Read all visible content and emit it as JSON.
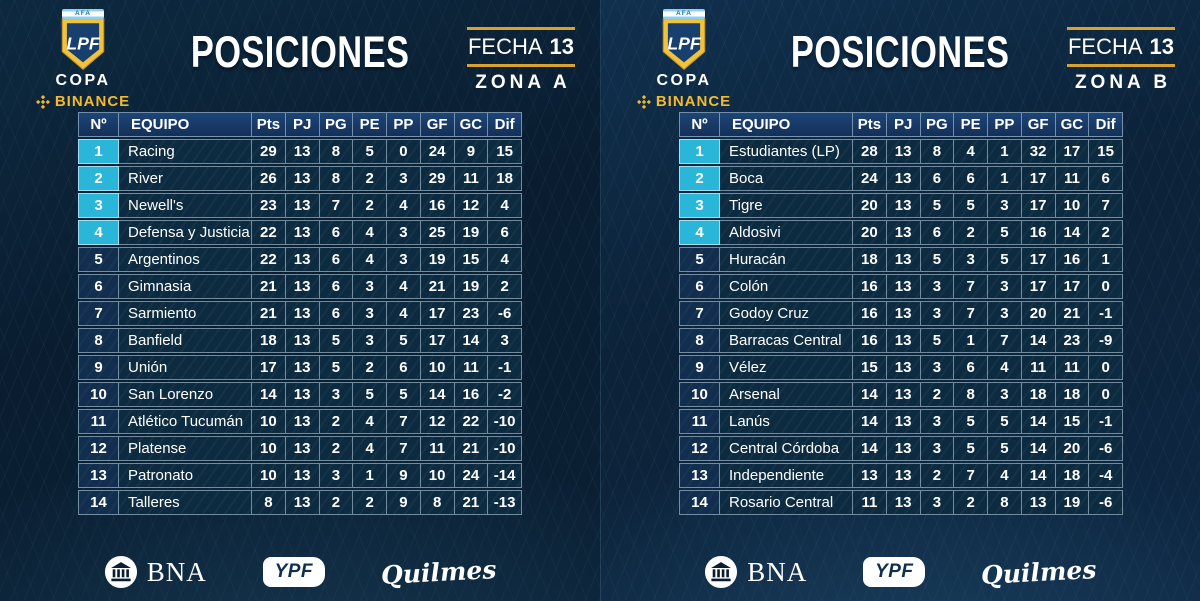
{
  "title": "POSICIONES",
  "fecha": {
    "label": "FECHA",
    "number": "13"
  },
  "branding": {
    "afa": "AFA",
    "lpf": "LPF",
    "copa": "COPA",
    "binance": "BINANCE"
  },
  "columns": [
    "Nº",
    "EQUIPO",
    "Pts",
    "PJ",
    "PG",
    "PE",
    "PP",
    "GF",
    "GC",
    "Dif"
  ],
  "zones": [
    {
      "name": "ZONA A",
      "rows": [
        [
          "1",
          "Racing",
          "29",
          "13",
          "8",
          "5",
          "0",
          "24",
          "9",
          "15"
        ],
        [
          "2",
          "River",
          "26",
          "13",
          "8",
          "2",
          "3",
          "29",
          "11",
          "18"
        ],
        [
          "3",
          "Newell's",
          "23",
          "13",
          "7",
          "2",
          "4",
          "16",
          "12",
          "4"
        ],
        [
          "4",
          "Defensa y Justicia",
          "22",
          "13",
          "6",
          "4",
          "3",
          "25",
          "19",
          "6"
        ],
        [
          "5",
          "Argentinos",
          "22",
          "13",
          "6",
          "4",
          "3",
          "19",
          "15",
          "4"
        ],
        [
          "6",
          "Gimnasia",
          "21",
          "13",
          "6",
          "3",
          "4",
          "21",
          "19",
          "2"
        ],
        [
          "7",
          "Sarmiento",
          "21",
          "13",
          "6",
          "3",
          "4",
          "17",
          "23",
          "-6"
        ],
        [
          "8",
          "Banfield",
          "18",
          "13",
          "5",
          "3",
          "5",
          "17",
          "14",
          "3"
        ],
        [
          "9",
          "Unión",
          "17",
          "13",
          "5",
          "2",
          "6",
          "10",
          "11",
          "-1"
        ],
        [
          "10",
          "San Lorenzo",
          "14",
          "13",
          "3",
          "5",
          "5",
          "14",
          "16",
          "-2"
        ],
        [
          "11",
          "Atlético Tucumán",
          "10",
          "13",
          "2",
          "4",
          "7",
          "12",
          "22",
          "-10"
        ],
        [
          "12",
          "Platense",
          "10",
          "13",
          "2",
          "4",
          "7",
          "11",
          "21",
          "-10"
        ],
        [
          "13",
          "Patronato",
          "10",
          "13",
          "3",
          "1",
          "9",
          "10",
          "24",
          "-14"
        ],
        [
          "14",
          "Talleres",
          "8",
          "13",
          "2",
          "2",
          "9",
          "8",
          "21",
          "-13"
        ]
      ]
    },
    {
      "name": "ZONA B",
      "rows": [
        [
          "1",
          "Estudiantes (LP)",
          "28",
          "13",
          "8",
          "4",
          "1",
          "32",
          "17",
          "15"
        ],
        [
          "2",
          "Boca",
          "24",
          "13",
          "6",
          "6",
          "1",
          "17",
          "11",
          "6"
        ],
        [
          "3",
          "Tigre",
          "20",
          "13",
          "5",
          "5",
          "3",
          "17",
          "10",
          "7"
        ],
        [
          "4",
          "Aldosivi",
          "20",
          "13",
          "6",
          "2",
          "5",
          "16",
          "14",
          "2"
        ],
        [
          "5",
          "Huracán",
          "18",
          "13",
          "5",
          "3",
          "5",
          "17",
          "16",
          "1"
        ],
        [
          "6",
          "Colón",
          "16",
          "13",
          "3",
          "7",
          "3",
          "17",
          "17",
          "0"
        ],
        [
          "7",
          "Godoy Cruz",
          "16",
          "13",
          "3",
          "7",
          "3",
          "20",
          "21",
          "-1"
        ],
        [
          "8",
          "Barracas Central",
          "16",
          "13",
          "5",
          "1",
          "7",
          "14",
          "23",
          "-9"
        ],
        [
          "9",
          "Vélez",
          "15",
          "13",
          "3",
          "6",
          "4",
          "11",
          "11",
          "0"
        ],
        [
          "10",
          "Arsenal",
          "14",
          "13",
          "2",
          "8",
          "3",
          "18",
          "18",
          "0"
        ],
        [
          "11",
          "Lanús",
          "14",
          "13",
          "3",
          "5",
          "5",
          "14",
          "15",
          "-1"
        ],
        [
          "12",
          "Central Córdoba",
          "14",
          "13",
          "3",
          "5",
          "5",
          "14",
          "20",
          "-6"
        ],
        [
          "13",
          "Independiente",
          "13",
          "13",
          "2",
          "7",
          "4",
          "14",
          "18",
          "-4"
        ],
        [
          "14",
          "Rosario Central",
          "11",
          "13",
          "3",
          "2",
          "8",
          "13",
          "19",
          "-6"
        ]
      ]
    }
  ],
  "sponsors": {
    "bna": "BNA",
    "ypf": "YPF",
    "quilmes": "Quilmes"
  },
  "colors": {
    "accent_cyan": "#2ab6d8",
    "gold_line": "#d9a22f",
    "binance_yellow": "#f3ba2f",
    "header_blue": "#1d4577",
    "cell_navy": "#0d2b40",
    "background": "#0a1d30"
  },
  "chart_data": [
    {
      "type": "table",
      "title": "POSICIONES - FECHA 13 - ZONA A",
      "columns": [
        "Nº",
        "EQUIPO",
        "Pts",
        "PJ",
        "PG",
        "PE",
        "PP",
        "GF",
        "GC",
        "Dif"
      ],
      "rows": [
        [
          1,
          "Racing",
          29,
          13,
          8,
          5,
          0,
          24,
          9,
          15
        ],
        [
          2,
          "River",
          26,
          13,
          8,
          2,
          3,
          29,
          11,
          18
        ],
        [
          3,
          "Newell's",
          23,
          13,
          7,
          2,
          4,
          16,
          12,
          4
        ],
        [
          4,
          "Defensa y Justicia",
          22,
          13,
          6,
          4,
          3,
          25,
          19,
          6
        ],
        [
          5,
          "Argentinos",
          22,
          13,
          6,
          4,
          3,
          19,
          15,
          4
        ],
        [
          6,
          "Gimnasia",
          21,
          13,
          6,
          3,
          4,
          21,
          19,
          2
        ],
        [
          7,
          "Sarmiento",
          21,
          13,
          6,
          3,
          4,
          17,
          23,
          -6
        ],
        [
          8,
          "Banfield",
          18,
          13,
          5,
          3,
          5,
          17,
          14,
          3
        ],
        [
          9,
          "Unión",
          17,
          13,
          5,
          2,
          6,
          10,
          11,
          -1
        ],
        [
          10,
          "San Lorenzo",
          14,
          13,
          3,
          5,
          5,
          14,
          16,
          -2
        ],
        [
          11,
          "Atlético Tucumán",
          10,
          13,
          2,
          4,
          7,
          12,
          22,
          -10
        ],
        [
          12,
          "Platense",
          10,
          13,
          2,
          4,
          7,
          11,
          21,
          -10
        ],
        [
          13,
          "Patronato",
          10,
          13,
          3,
          1,
          9,
          10,
          24,
          -14
        ],
        [
          14,
          "Talleres",
          8,
          13,
          2,
          2,
          9,
          8,
          21,
          -13
        ]
      ],
      "highlight": "positions 1-4 cyan (qualification)"
    },
    {
      "type": "table",
      "title": "POSICIONES - FECHA 13 - ZONA B",
      "columns": [
        "Nº",
        "EQUIPO",
        "Pts",
        "PJ",
        "PG",
        "PE",
        "PP",
        "GF",
        "GC",
        "Dif"
      ],
      "rows": [
        [
          1,
          "Estudiantes (LP)",
          28,
          13,
          8,
          4,
          1,
          32,
          17,
          15
        ],
        [
          2,
          "Boca",
          24,
          13,
          6,
          6,
          1,
          17,
          11,
          6
        ],
        [
          3,
          "Tigre",
          20,
          13,
          5,
          5,
          3,
          17,
          10,
          7
        ],
        [
          4,
          "Aldosivi",
          20,
          13,
          6,
          2,
          5,
          16,
          14,
          2
        ],
        [
          5,
          "Huracán",
          18,
          13,
          5,
          3,
          5,
          17,
          16,
          1
        ],
        [
          6,
          "Colón",
          16,
          13,
          3,
          7,
          3,
          17,
          17,
          0
        ],
        [
          7,
          "Godoy Cruz",
          16,
          13,
          3,
          7,
          3,
          20,
          21,
          -1
        ],
        [
          8,
          "Barracas Central",
          16,
          13,
          5,
          1,
          7,
          14,
          23,
          -9
        ],
        [
          9,
          "Vélez",
          15,
          13,
          3,
          6,
          4,
          11,
          11,
          0
        ],
        [
          10,
          "Arsenal",
          14,
          13,
          2,
          8,
          3,
          18,
          18,
          0
        ],
        [
          11,
          "Lanús",
          14,
          13,
          3,
          5,
          5,
          14,
          15,
          -1
        ],
        [
          12,
          "Central Córdoba",
          14,
          13,
          3,
          5,
          5,
          14,
          20,
          -6
        ],
        [
          13,
          "Independiente",
          13,
          13,
          2,
          7,
          4,
          14,
          18,
          -4
        ],
        [
          14,
          "Rosario Central",
          11,
          13,
          3,
          2,
          8,
          13,
          19,
          -6
        ]
      ],
      "highlight": "positions 1-4 cyan (qualification)"
    }
  ]
}
